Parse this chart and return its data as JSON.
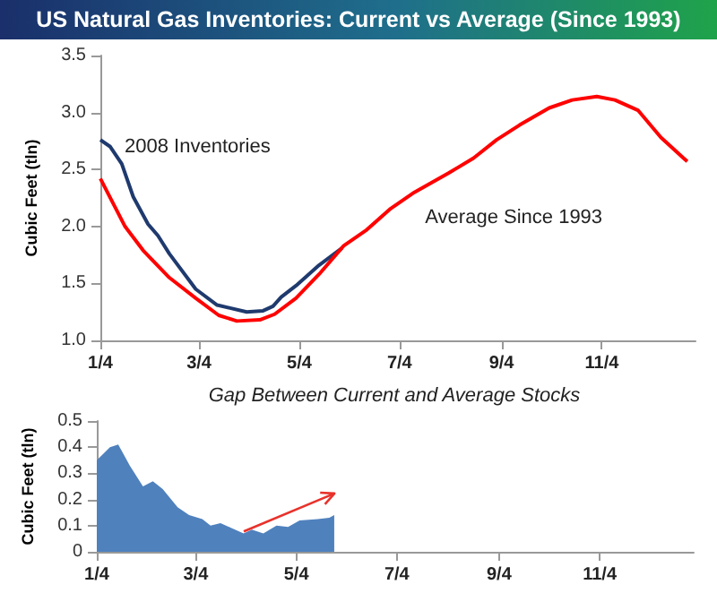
{
  "chart_data": [
    {
      "type": "line",
      "title": "US Natural Gas Inventories: Current vs Average (Since 1993)",
      "ylabel": "Cubic Feet (tln)",
      "marker": "none",
      "xlim": [
        "--01-04",
        "--12-31"
      ],
      "xticks": [
        {
          "value": "--01-04",
          "label": "1/4"
        },
        {
          "value": "--03-04",
          "label": "3/4"
        },
        {
          "value": "--05-04",
          "label": "5/4"
        },
        {
          "value": "--07-04",
          "label": "7/4"
        },
        {
          "value": "--09-04",
          "label": "9/4"
        },
        {
          "value": "--11-04",
          "label": "11/4"
        }
      ],
      "ylim": [
        1,
        3.5
      ],
      "yticks": [
        {
          "value": 1,
          "label": "1.0"
        },
        {
          "value": 1.5,
          "label": "1.5"
        },
        {
          "value": 2,
          "label": "2.0"
        },
        {
          "value": 2.5,
          "label": "2.5"
        },
        {
          "value": 3,
          "label": "3.0"
        },
        {
          "value": 3.5,
          "label": "3.5"
        }
      ],
      "series": [
        {
          "name": "2008 Inventories",
          "color": "#1f3a6e",
          "x": [
            "--01-04",
            "--01-10",
            "--01-17",
            "--01-24",
            "--02-02",
            "--02-08",
            "--02-15",
            "--03-02",
            "--03-15",
            "--04-02",
            "--04-12",
            "--04-18",
            "--04-23",
            "--05-02",
            "--05-16",
            "--05-30"
          ],
          "values": [
            2.76,
            2.7,
            2.55,
            2.26,
            2.02,
            1.92,
            1.76,
            1.45,
            1.31,
            1.25,
            1.26,
            1.3,
            1.38,
            1.48,
            1.66,
            1.81
          ]
        },
        {
          "name": "Average Since 1993",
          "color": "#ff0000",
          "x": [
            "--01-04",
            "--01-19",
            "--01-30",
            "--02-15",
            "--03-02",
            "--03-16",
            "--03-27",
            "--04-10",
            "--04-19",
            "--05-02",
            "--05-16",
            "--05-31",
            "--06-14",
            "--06-28",
            "--07-13",
            "--08-03",
            "--08-18",
            "--09-01",
            "--09-15",
            "--10-03",
            "--10-17",
            "--11-01",
            "--11-12",
            "--11-26",
            "--12-10",
            "--12-26"
          ],
          "values": [
            2.42,
            2.0,
            1.79,
            1.55,
            1.37,
            1.22,
            1.17,
            1.18,
            1.23,
            1.37,
            1.58,
            1.83,
            1.97,
            2.15,
            2.3,
            2.47,
            2.6,
            2.76,
            2.89,
            3.04,
            3.11,
            3.14,
            3.11,
            3.02,
            2.78,
            2.57
          ]
        }
      ]
    },
    {
      "type": "area",
      "title": "Gap Between Current and Average Stocks",
      "ylabel": "Cubic Feet (tln)",
      "marker": "none",
      "xlim": [
        "--01-04",
        "--12-31"
      ],
      "xticks": [
        {
          "value": "--01-04",
          "label": "1/4"
        },
        {
          "value": "--03-04",
          "label": "3/4"
        },
        {
          "value": "--05-04",
          "label": "5/4"
        },
        {
          "value": "--07-04",
          "label": "7/4"
        },
        {
          "value": "--09-04",
          "label": "9/4"
        },
        {
          "value": "--11-04",
          "label": "11/4"
        }
      ],
      "ylim": [
        0,
        0.5
      ],
      "yticks": [
        0,
        0.1,
        0.2,
        0.3,
        0.4,
        0.5
      ],
      "series": [
        {
          "color": "#4f81bd",
          "x": [
            "--01-04",
            "--01-12",
            "--01-17",
            "--01-24",
            "--02-01",
            "--02-07",
            "--02-13",
            "--02-22",
            "--02-29",
            "--03-08",
            "--03-13",
            "--03-19",
            "--03-26",
            "--04-02",
            "--04-07",
            "--04-14",
            "--04-22",
            "--04-29",
            "--05-06",
            "--05-17",
            "--05-24",
            "--05-27"
          ],
          "values": [
            0.35,
            0.4,
            0.41,
            0.33,
            0.25,
            0.27,
            0.24,
            0.17,
            0.14,
            0.125,
            0.1,
            0.11,
            0.09,
            0.07,
            0.085,
            0.07,
            0.1,
            0.095,
            0.12,
            0.125,
            0.13,
            0.14
          ]
        }
      ]
    }
  ]
}
